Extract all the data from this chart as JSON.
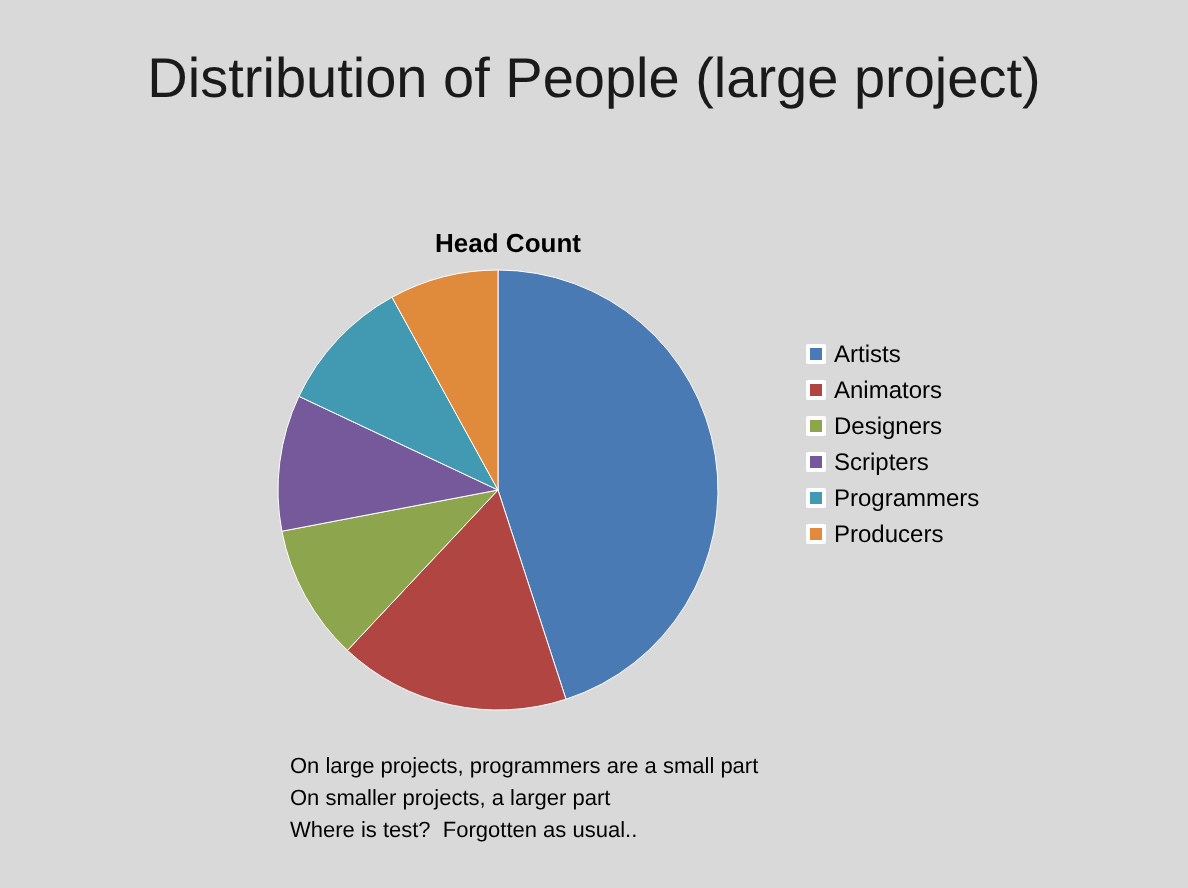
{
  "chart_data": {
    "type": "pie",
    "title": "Distribution of People (large project)",
    "subtitle": "Head Count",
    "categories": [
      "Artists",
      "Animators",
      "Designers",
      "Scripters",
      "Programmers",
      "Producers"
    ],
    "values": [
      45,
      17,
      10,
      10,
      10,
      8
    ],
    "colors": [
      "#4a7ab4",
      "#b04542",
      "#8da64d",
      "#76599a",
      "#4199b2",
      "#e08a3c"
    ],
    "legend": "right",
    "annotations": [
      "On large projects, programmers are a small part",
      "On smaller projects, a larger part",
      "Where is test?  Forgotten as usual.."
    ]
  }
}
